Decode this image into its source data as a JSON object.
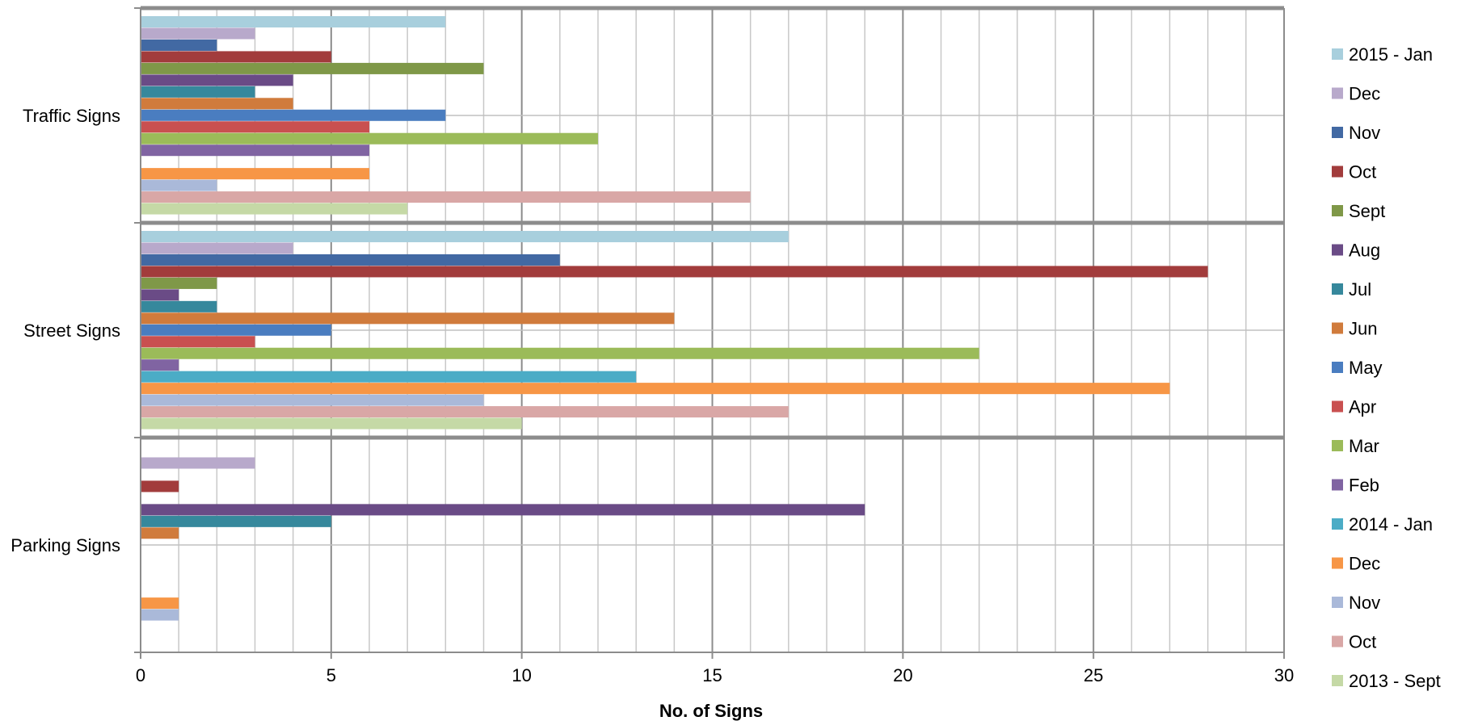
{
  "chart_data": {
    "type": "bar",
    "orientation": "horizontal",
    "categories": [
      "Traffic Signs",
      "Street Signs",
      "Parking Signs"
    ],
    "xlabel": "No. of Signs",
    "xlim": [
      0,
      30
    ],
    "x_major_ticks": [
      0,
      5,
      10,
      15,
      20,
      25,
      30
    ],
    "x_minor_step": 1,
    "grid": true,
    "legend": "right",
    "series": [
      {
        "name": "2015 - Jan",
        "color": "#a8cfdd",
        "values": [
          8,
          17,
          null
        ]
      },
      {
        "name": "Dec",
        "color": "#b8a9cb",
        "values": [
          3,
          4,
          3
        ]
      },
      {
        "name": "Nov",
        "color": "#4269a3",
        "values": [
          2,
          11,
          null
        ]
      },
      {
        "name": "Oct",
        "color": "#a23c3c",
        "values": [
          5,
          28,
          1
        ]
      },
      {
        "name": "Sept",
        "color": "#7f9848",
        "values": [
          9,
          2,
          null
        ]
      },
      {
        "name": "Aug",
        "color": "#6a4b86",
        "values": [
          4,
          1,
          19
        ]
      },
      {
        "name": "Jul",
        "color": "#36889c",
        "values": [
          3,
          2,
          5
        ]
      },
      {
        "name": "Jun",
        "color": "#d07b3c",
        "values": [
          4,
          14,
          1
        ]
      },
      {
        "name": "May",
        "color": "#4a7dc0",
        "values": [
          8,
          5,
          null
        ]
      },
      {
        "name": "Apr",
        "color": "#c95050",
        "values": [
          6,
          3,
          null
        ]
      },
      {
        "name": "Mar",
        "color": "#9bbb59",
        "values": [
          12,
          22,
          null
        ]
      },
      {
        "name": "Feb",
        "color": "#8064a2",
        "values": [
          6,
          1,
          null
        ]
      },
      {
        "name": "2014 - Jan",
        "color": "#4bacc6",
        "values": [
          null,
          13,
          null
        ]
      },
      {
        "name": "Dec",
        "color": "#f79646",
        "values": [
          6,
          27,
          1
        ]
      },
      {
        "name": "Nov",
        "color": "#aab9d9",
        "values": [
          2,
          9,
          1
        ]
      },
      {
        "name": "Oct",
        "color": "#d9a7a6",
        "values": [
          16,
          17,
          null
        ]
      },
      {
        "name": "2013 - Sept",
        "color": "#c5d9a6",
        "values": [
          7,
          10,
          null
        ]
      }
    ]
  }
}
